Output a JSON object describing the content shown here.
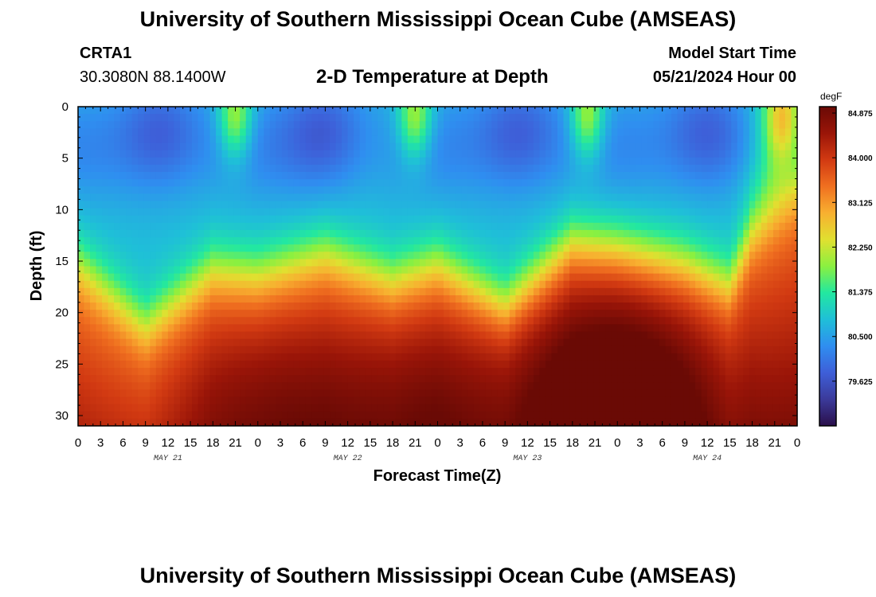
{
  "header": {
    "title": "University of Southern Mississippi Ocean Cube (AMSEAS)",
    "station": "CRTA1",
    "coords": "30.3080N  88.1400W",
    "model_start_label": "Model Start Time",
    "model_start_value": "05/21/2024 Hour 00"
  },
  "footer": {
    "title": "University of Southern Mississippi Ocean Cube (AMSEAS)"
  },
  "chart_data": {
    "type": "heatmap",
    "title": "2-D Temperature at Depth",
    "xlabel": "Forecast Time(Z)",
    "ylabel": "Depth (ft)",
    "x_tick_labels": [
      "0",
      "3",
      "6",
      "9",
      "12",
      "15",
      "18",
      "21",
      "0",
      "3",
      "6",
      "9",
      "12",
      "15",
      "18",
      "21",
      "0",
      "3",
      "6",
      "9",
      "12",
      "15",
      "18",
      "21",
      "0",
      "3",
      "6",
      "9",
      "12",
      "15",
      "18",
      "21",
      "0"
    ],
    "day_labels": [
      "MAY 21",
      "MAY 22",
      "MAY 23",
      "MAY 24"
    ],
    "xlim_hours": [
      0,
      96
    ],
    "ylim_ft": [
      0,
      31
    ],
    "y_ticks": [
      0,
      5,
      10,
      15,
      20,
      25,
      30
    ],
    "colorbar": {
      "units": "degF",
      "range": [
        78.75,
        85.0
      ],
      "tick_values": [
        "84.875",
        "84.000",
        "83.125",
        "82.250",
        "81.375",
        "80.500",
        "79.625"
      ],
      "colors": [
        "#2a0f4a",
        "#3b3a9a",
        "#3e5fd8",
        "#2f8ef0",
        "#1fbfd8",
        "#22e8a0",
        "#8af040",
        "#e0e030",
        "#f8b030",
        "#f07020",
        "#d23a12",
        "#9a1508",
        "#6a0a05"
      ]
    },
    "thermocline_depth_ft_by_hour": [
      [
        0,
        15
      ],
      [
        9,
        21
      ],
      [
        18,
        15.5
      ],
      [
        24,
        16
      ],
      [
        33,
        14
      ],
      [
        42,
        16.5
      ],
      [
        48,
        15
      ],
      [
        57,
        19
      ],
      [
        66,
        13
      ],
      [
        72,
        13.5
      ],
      [
        81,
        15
      ],
      [
        87,
        17
      ],
      [
        90,
        12
      ],
      [
        93,
        10
      ],
      [
        96,
        8
      ]
    ],
    "bottom_core_hours": [
      25,
      46,
      72,
      72
    ],
    "surface_warm_hours": [
      21,
      45,
      68,
      94
    ],
    "surface_cold_hours": [
      11,
      33,
      59,
      84
    ]
  }
}
